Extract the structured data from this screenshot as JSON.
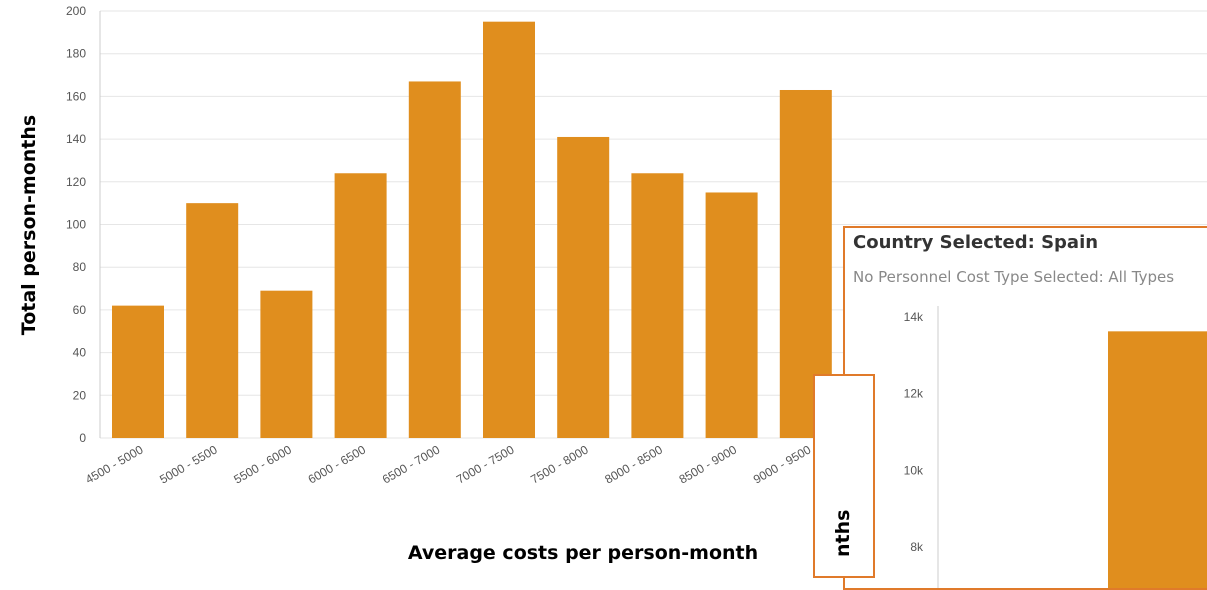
{
  "chart_data": [
    {
      "type": "bar",
      "categories": [
        "4500 - 5000",
        "5000 - 5500",
        "5500 - 6000",
        "6000 - 6500",
        "6500 - 7000",
        "7000 - 7500",
        "7500 - 8000",
        "8000 - 8500",
        "8500 - 9000",
        "9000 - 9500"
      ],
      "values": [
        62,
        110,
        69,
        124,
        167,
        195,
        141,
        124,
        115,
        163
      ],
      "xlabel": "Average costs per person-month",
      "ylabel": "Total person-months",
      "ylim": [
        0,
        200
      ],
      "yticks": [
        0,
        20,
        40,
        60,
        80,
        100,
        120,
        140,
        160,
        180,
        200
      ],
      "grid": true,
      "bar_color": "#e08e1e"
    },
    {
      "type": "bar",
      "title": "Country Selected: Spain",
      "subtitle": "No Personnel Cost Type Selected: All Types",
      "yticks": [
        "8k",
        "10k",
        "12k",
        "14k"
      ],
      "values": [
        13600
      ],
      "grid": false,
      "bar_color": "#e08e1e"
    }
  ],
  "small_panel": {
    "label": "Total person-months",
    "visible_label": "nths"
  },
  "colors": {
    "bar": "#e08e1e",
    "panel_border": "#e07a2a",
    "grid": "#e6e6e6"
  }
}
